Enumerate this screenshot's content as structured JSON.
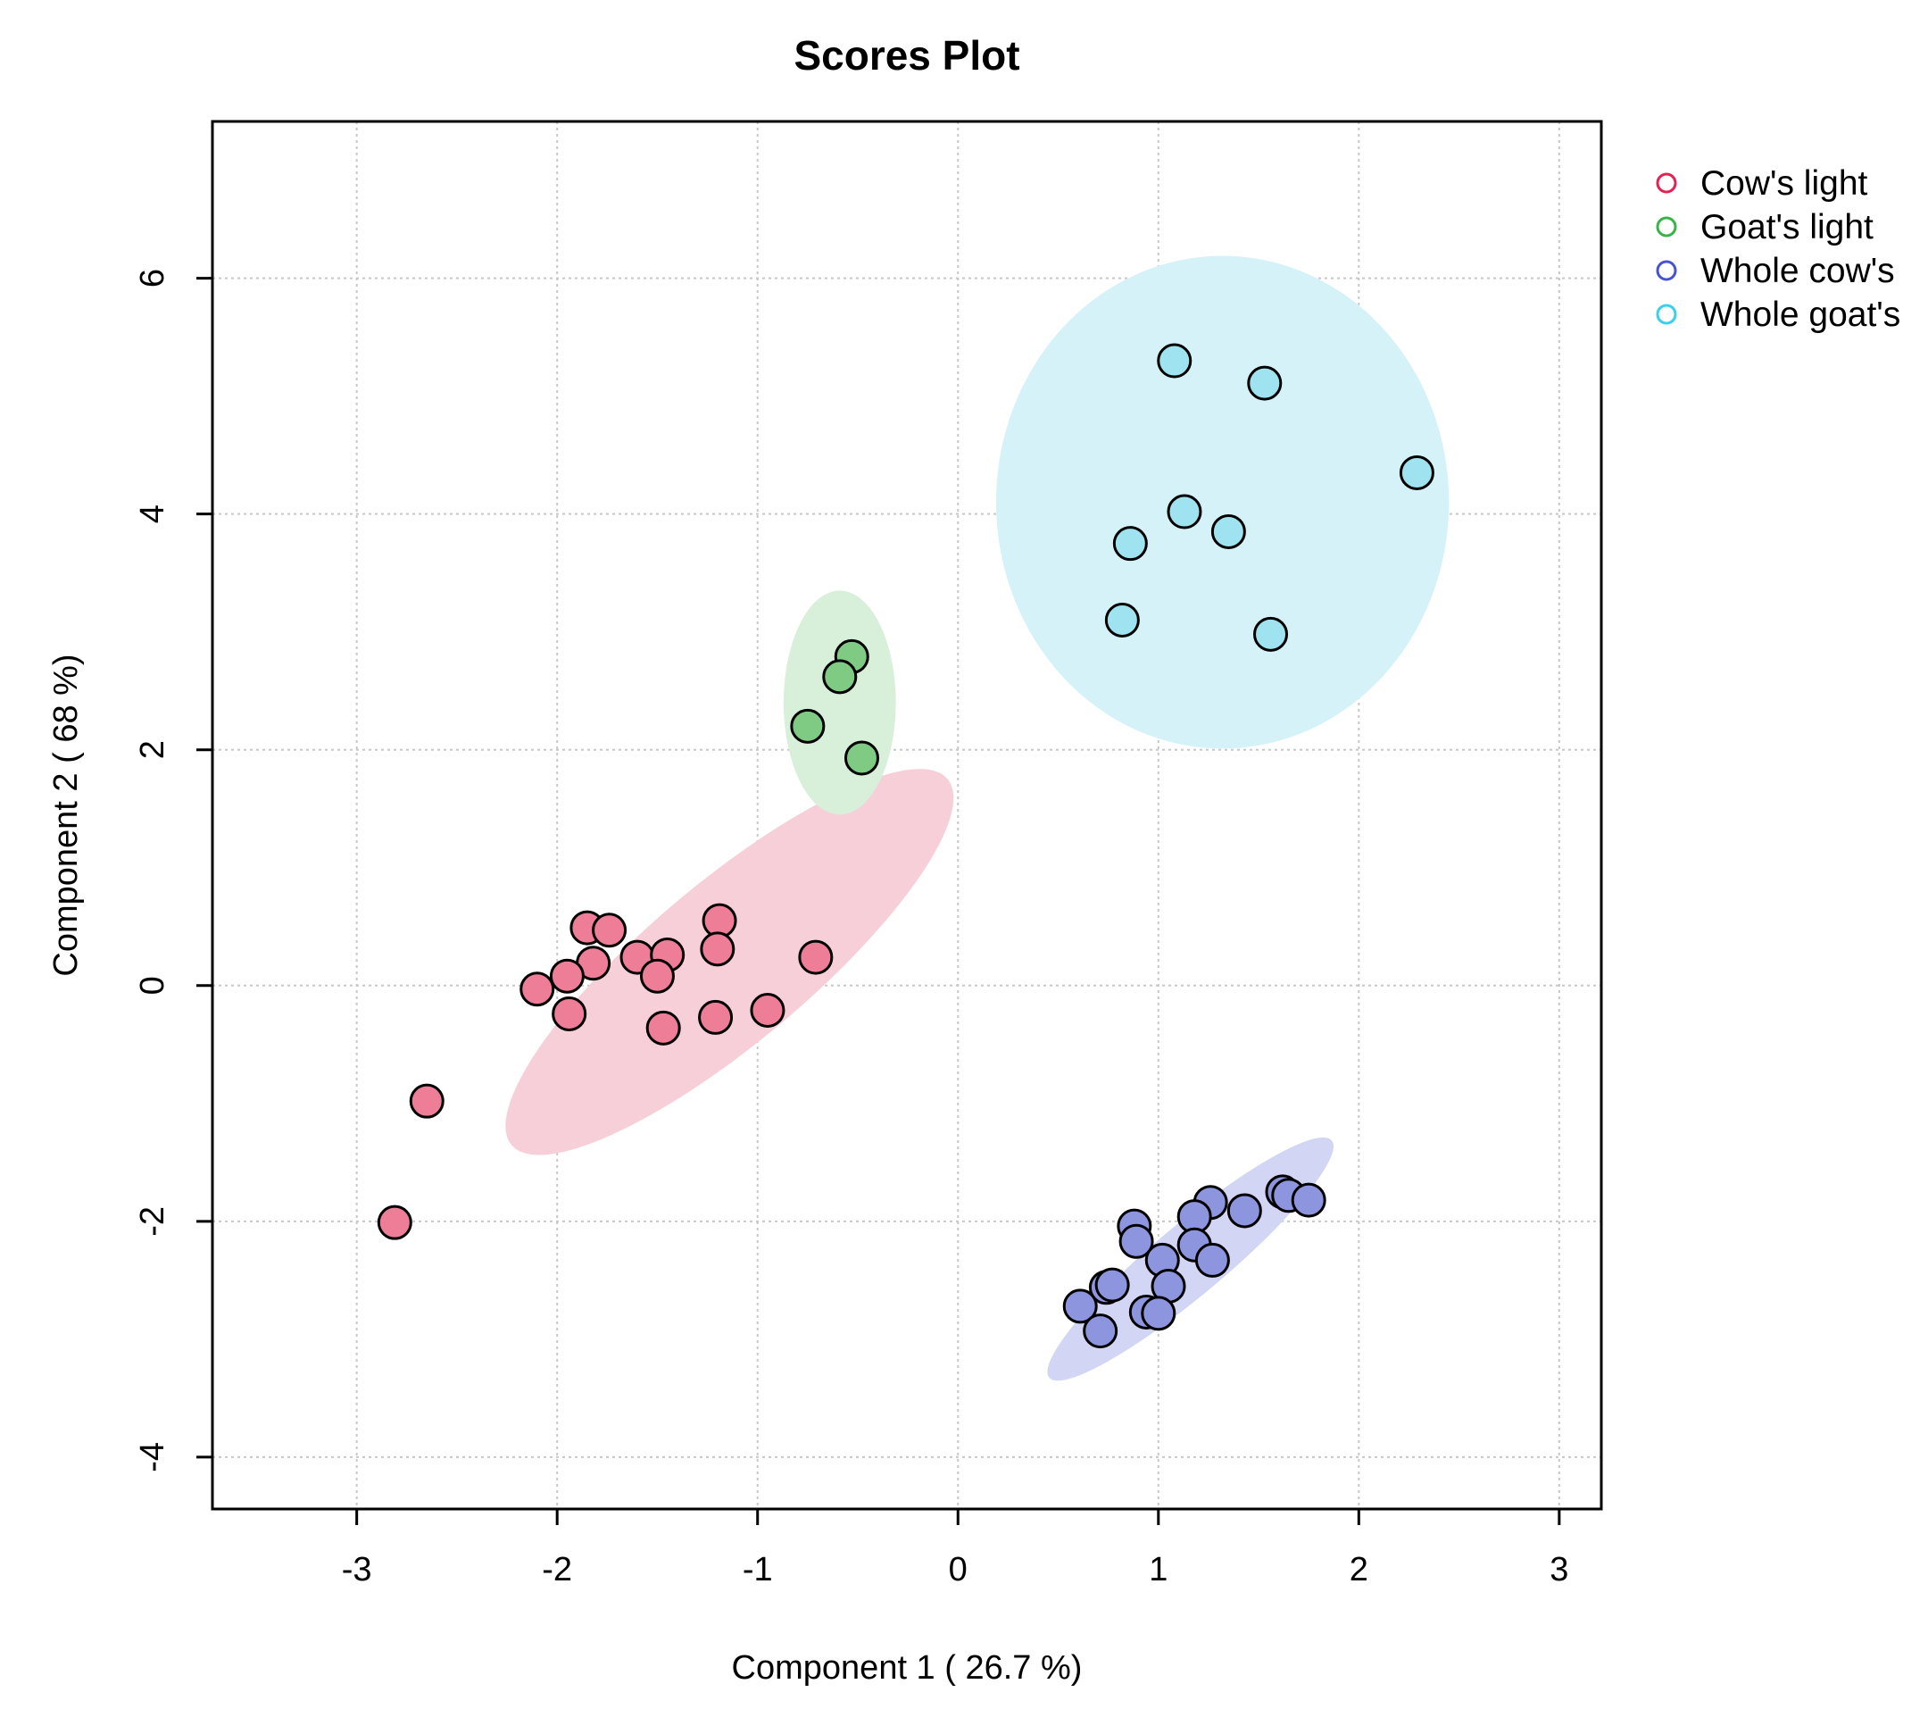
{
  "chart_data": {
    "type": "scatter",
    "title": "Scores Plot",
    "xlabel": "Component 1 ( 26.7 %)",
    "ylabel": "Component 2 ( 68 %)",
    "xlim": [
      -3.72,
      3.21
    ],
    "ylim": [
      -4.44,
      7.33
    ],
    "xticks": [
      -3,
      -2,
      -1,
      0,
      1,
      2,
      3
    ],
    "yticks": [
      -4,
      -2,
      0,
      2,
      4,
      6
    ],
    "grid": true,
    "legend_position": "right",
    "series": [
      {
        "name": "Cow's light",
        "color": "#e8204f",
        "fill": "#ee7d97",
        "ellipse_fill": "#f7cfd8",
        "ellipse": {
          "cx": -1.14,
          "cy": 0.2,
          "rx": 1.42,
          "ry": 0.68,
          "angle_deg": 40
        },
        "points": [
          [
            -2.65,
            -0.98
          ],
          [
            -2.81,
            -2.01
          ],
          [
            -1.85,
            0.49
          ],
          [
            -1.74,
            0.47
          ],
          [
            -1.82,
            0.19
          ],
          [
            -1.95,
            0.08
          ],
          [
            -2.1,
            -0.03
          ],
          [
            -1.94,
            -0.24
          ],
          [
            -1.6,
            0.24
          ],
          [
            -1.45,
            0.26
          ],
          [
            -1.5,
            0.08
          ],
          [
            -1.47,
            -0.36
          ],
          [
            -1.19,
            0.55
          ],
          [
            -1.2,
            0.31
          ],
          [
            -1.21,
            -0.27
          ],
          [
            -0.95,
            -0.21
          ],
          [
            -0.71,
            0.24
          ]
        ]
      },
      {
        "name": "Goat's light",
        "color": "#35b545",
        "fill": "#7fcb84",
        "ellipse_fill": "#d8efd9",
        "ellipse": {
          "cx": -0.59,
          "cy": 2.4,
          "rx": 0.28,
          "ry": 0.95,
          "angle_deg": 0
        },
        "points": [
          [
            -0.53,
            2.79
          ],
          [
            -0.59,
            2.62
          ],
          [
            -0.75,
            2.2
          ],
          [
            -0.48,
            1.93
          ]
        ]
      },
      {
        "name": "Whole cow's",
        "color": "#4552d6",
        "fill": "#8d95de",
        "ellipse_fill": "#d2d6f4",
        "ellipse": {
          "cx": 1.16,
          "cy": -2.32,
          "rx": 0.92,
          "ry": 0.3,
          "angle_deg": 40
        },
        "points": [
          [
            1.62,
            -1.75
          ],
          [
            1.65,
            -1.78
          ],
          [
            1.75,
            -1.82
          ],
          [
            1.43,
            -1.91
          ],
          [
            1.26,
            -1.84
          ],
          [
            1.18,
            -1.96
          ],
          [
            0.88,
            -2.04
          ],
          [
            0.89,
            -2.17
          ],
          [
            1.18,
            -2.2
          ],
          [
            1.02,
            -2.33
          ],
          [
            1.27,
            -2.33
          ],
          [
            1.05,
            -2.55
          ],
          [
            0.74,
            -2.56
          ],
          [
            0.77,
            -2.54
          ],
          [
            0.61,
            -2.72
          ],
          [
            0.94,
            -2.77
          ],
          [
            1.0,
            -2.78
          ],
          [
            0.71,
            -2.93
          ]
        ]
      },
      {
        "name": "Whole goat's",
        "color": "#38d0ea",
        "fill": "#9ee3ef",
        "ellipse_fill": "#d5f2f8",
        "ellipse": {
          "cx": 1.32,
          "cy": 4.1,
          "rx": 1.13,
          "ry": 2.09,
          "angle_deg": 0
        },
        "points": [
          [
            1.08,
            5.3
          ],
          [
            1.53,
            5.11
          ],
          [
            2.29,
            4.35
          ],
          [
            1.13,
            4.02
          ],
          [
            1.35,
            3.85
          ],
          [
            0.86,
            3.75
          ],
          [
            0.82,
            3.1
          ],
          [
            1.56,
            2.98
          ]
        ]
      }
    ]
  }
}
